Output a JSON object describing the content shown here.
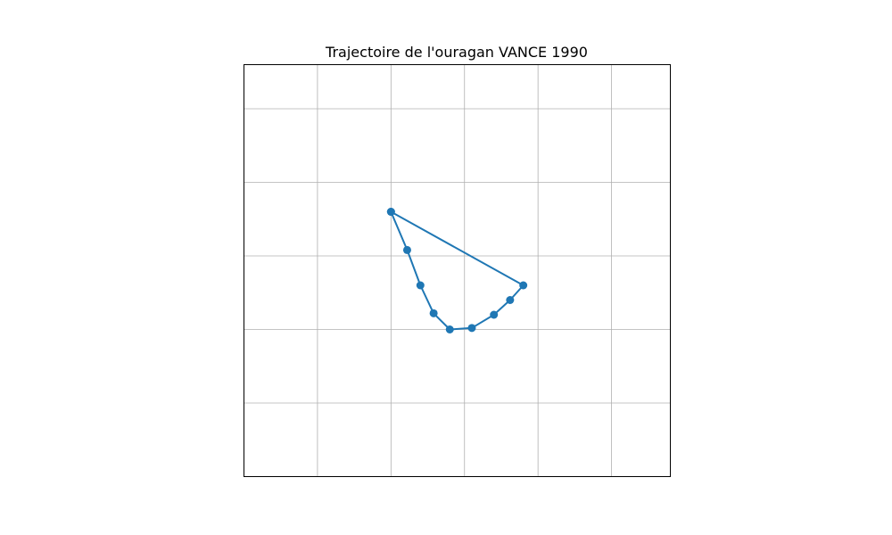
{
  "chart_data": {
    "type": "line",
    "title": "Trajectoire de l'ouragan VANCE 1990",
    "xlabel": "",
    "ylabel": "",
    "grid": true,
    "show_ticks": false,
    "xlim": [
      0,
      5.8
    ],
    "ylim": [
      0,
      5.6
    ],
    "series": [
      {
        "x": [
          2.0,
          2.22,
          2.4,
          2.58,
          2.8,
          3.1,
          3.4,
          3.62,
          3.8,
          2.0
        ],
        "y": [
          3.6,
          3.08,
          2.6,
          2.22,
          2.0,
          2.02,
          2.2,
          2.4,
          2.6,
          3.6
        ],
        "color": "#1f77b4",
        "marker": "circle"
      }
    ]
  }
}
